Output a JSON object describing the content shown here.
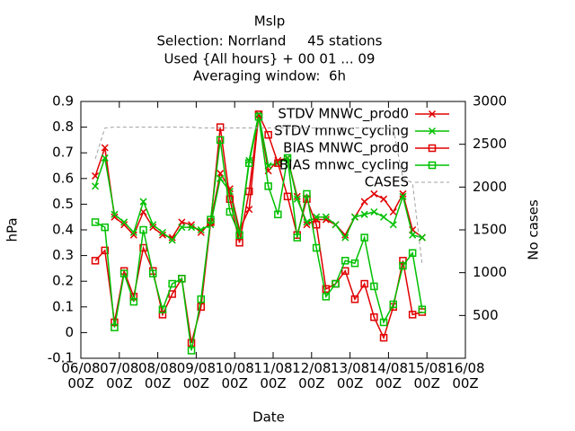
{
  "chart_data": {
    "type": "line",
    "title": "Mslp",
    "subtitle": [
      "Selection: Norrland     45 stations",
      "Used {All hours} + 00 01 ... 09",
      "Averaging window:  6h"
    ],
    "xlabel": "Date",
    "ylabel": "hPa",
    "y2label": "No cases",
    "x": [
      9,
      15,
      21,
      27,
      33,
      39,
      45,
      51,
      57,
      63,
      69,
      75,
      81,
      87,
      93,
      99,
      105,
      111,
      117,
      123,
      129,
      135,
      141,
      147,
      153,
      159,
      165,
      171,
      177,
      183,
      189,
      195,
      201,
      207,
      213
    ],
    "xlim": [
      0,
      240
    ],
    "xticks": [
      {
        "value": 0,
        "label": "06/08 00Z"
      },
      {
        "value": 24,
        "label": "07/08 00Z"
      },
      {
        "value": 48,
        "label": "08/08 00Z"
      },
      {
        "value": 72,
        "label": "09/08 00Z"
      },
      {
        "value": 96,
        "label": "10/08 00Z"
      },
      {
        "value": 120,
        "label": "11/08 00Z"
      },
      {
        "value": 144,
        "label": "12/08 00Z"
      },
      {
        "value": 168,
        "label": "13/08 00Z"
      },
      {
        "value": 192,
        "label": "14/08 00Z"
      },
      {
        "value": 216,
        "label": "15/08 00Z"
      },
      {
        "value": 240,
        "label": "16/08 00Z"
      }
    ],
    "ylim": [
      -0.1,
      0.9
    ],
    "yticks": [
      -0.1,
      0,
      0.1,
      0.2,
      0.3,
      0.4,
      0.5,
      0.6,
      0.7,
      0.8,
      0.9
    ],
    "y2lim": [
      0,
      3000
    ],
    "y2ticks": [
      500,
      1000,
      1500,
      2000,
      2500,
      3000
    ],
    "legend": "top-right",
    "series": [
      {
        "name": "STDV MNWC_prod0",
        "color": "#e00000",
        "marker": "cross",
        "values": [
          0.61,
          0.72,
          0.45,
          0.42,
          0.38,
          0.47,
          0.41,
          0.38,
          0.37,
          0.43,
          0.42,
          0.39,
          0.43,
          0.62,
          0.56,
          0.4,
          0.48,
          0.85,
          0.63,
          0.67,
          0.68,
          0.53,
          0.42,
          0.44,
          0.44,
          0.42,
          0.38,
          0.45,
          0.51,
          0.54,
          0.52,
          0.47,
          0.54,
          0.4,
          0.37
        ]
      },
      {
        "name": "STDV mnwc_cycling",
        "color": "#00c000",
        "marker": "cross",
        "values": [
          0.57,
          0.68,
          0.46,
          0.43,
          0.39,
          0.51,
          0.42,
          0.39,
          0.36,
          0.41,
          0.41,
          0.4,
          0.42,
          0.6,
          0.55,
          0.38,
          0.67,
          0.85,
          0.65,
          0.66,
          0.68,
          0.52,
          0.43,
          0.45,
          0.45,
          0.42,
          0.37,
          0.45,
          0.46,
          0.47,
          0.45,
          0.42,
          0.53,
          0.38,
          0.37
        ]
      },
      {
        "name": "BIAS MNWC_prod0",
        "color": "#e00000",
        "marker": "box",
        "values": [
          0.28,
          0.32,
          0.04,
          0.24,
          0.14,
          0.33,
          0.24,
          0.07,
          0.15,
          0.21,
          -0.04,
          0.1,
          0.43,
          0.8,
          0.52,
          0.35,
          0.55,
          0.85,
          0.77,
          0.66,
          0.53,
          0.38,
          0.52,
          0.42,
          0.17,
          0.19,
          0.24,
          0.13,
          0.19,
          0.06,
          -0.02,
          0.1,
          0.28,
          0.07,
          0.08
        ]
      },
      {
        "name": "BIAS mnwc_cycling",
        "color": "#00c000",
        "marker": "box",
        "values": [
          0.43,
          0.41,
          0.02,
          0.23,
          0.12,
          0.4,
          0.23,
          0.09,
          0.19,
          0.21,
          -0.07,
          0.13,
          0.44,
          0.75,
          0.47,
          0.38,
          0.66,
          0.84,
          0.57,
          0.46,
          0.68,
          0.37,
          0.54,
          0.33,
          0.14,
          0.19,
          0.28,
          0.27,
          0.37,
          0.18,
          0.04,
          0.11,
          0.26,
          0.31,
          0.09
        ]
      },
      {
        "name": "CASES",
        "color": "#a0a0a0",
        "marker": "none",
        "dashed": true,
        "axis": "y2",
        "values": [
          2330,
          2690,
          2700,
          2700,
          2700,
          2700,
          2700,
          2700,
          2700,
          2700,
          2700,
          2690,
          2690,
          2690,
          2690,
          2690,
          2690,
          2690,
          2690,
          2690,
          2690,
          2690,
          2690,
          2690,
          2690,
          2690,
          2690,
          2690,
          2690,
          2690,
          2690,
          2680,
          2100,
          2050,
          1100
        ]
      }
    ]
  }
}
